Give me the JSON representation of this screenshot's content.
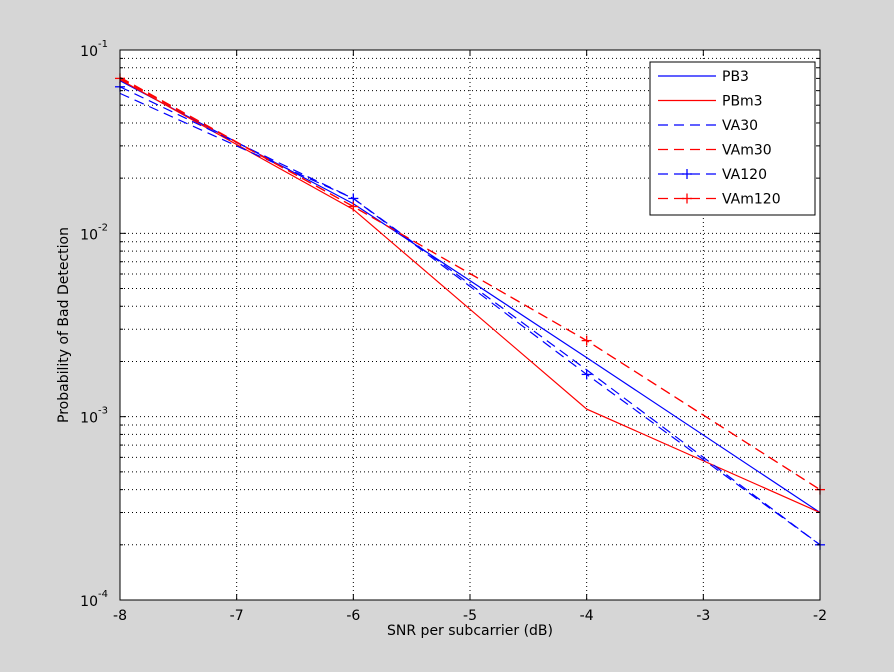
{
  "chart_data": {
    "type": "line",
    "xlabel": "SNR per subcarrier (dB)",
    "ylabel": "Probability of Bad Detection",
    "xlim": [
      -8,
      -2
    ],
    "ylim": [
      0.0001,
      0.1
    ],
    "yscale": "log",
    "grid": true,
    "legend_position": "top-right",
    "x_ticks": [
      -8,
      -7,
      -6,
      -5,
      -4,
      -3,
      -2
    ],
    "x_tick_labels": [
      "-8",
      "-7",
      "-6",
      "-5",
      "-4",
      "-3",
      "-2"
    ],
    "y_ticks": [
      {
        "value": 0.1,
        "base": "10",
        "exp": "-1"
      },
      {
        "value": 0.01,
        "base": "10",
        "exp": "-2"
      },
      {
        "value": 0.001,
        "base": "10",
        "exp": "-3"
      },
      {
        "value": 0.0001,
        "base": "10",
        "exp": "-4"
      }
    ],
    "x": [
      -8,
      -6,
      -4,
      -2
    ],
    "series": [
      {
        "name": "PB3",
        "color": "#0000ff",
        "dash": "solid",
        "marker": "none",
        "values": [
          0.068,
          0.0145,
          0.0021,
          0.0003
        ]
      },
      {
        "name": "PBm3",
        "color": "#ff0000",
        "dash": "solid",
        "marker": "none",
        "values": [
          0.069,
          0.0135,
          0.0011,
          0.0003
        ]
      },
      {
        "name": "VA30",
        "color": "#0000ff",
        "dash": "dashed",
        "marker": "none",
        "values": [
          0.058,
          0.0155,
          0.0018,
          0.0002
        ]
      },
      {
        "name": "VAm30",
        "color": "#ff0000",
        "dash": "dashed",
        "marker": "none",
        "values": [
          0.071,
          0.014,
          0.0026,
          0.0004
        ]
      },
      {
        "name": "VA120",
        "color": "#0000ff",
        "dash": "dashed",
        "marker": "plus",
        "values": [
          0.063,
          0.0155,
          0.0017,
          0.0002
        ]
      },
      {
        "name": "VAm120",
        "color": "#ff0000",
        "dash": "dashed",
        "marker": "plus",
        "values": [
          0.07,
          0.014,
          0.0026,
          0.0004
        ]
      }
    ]
  }
}
